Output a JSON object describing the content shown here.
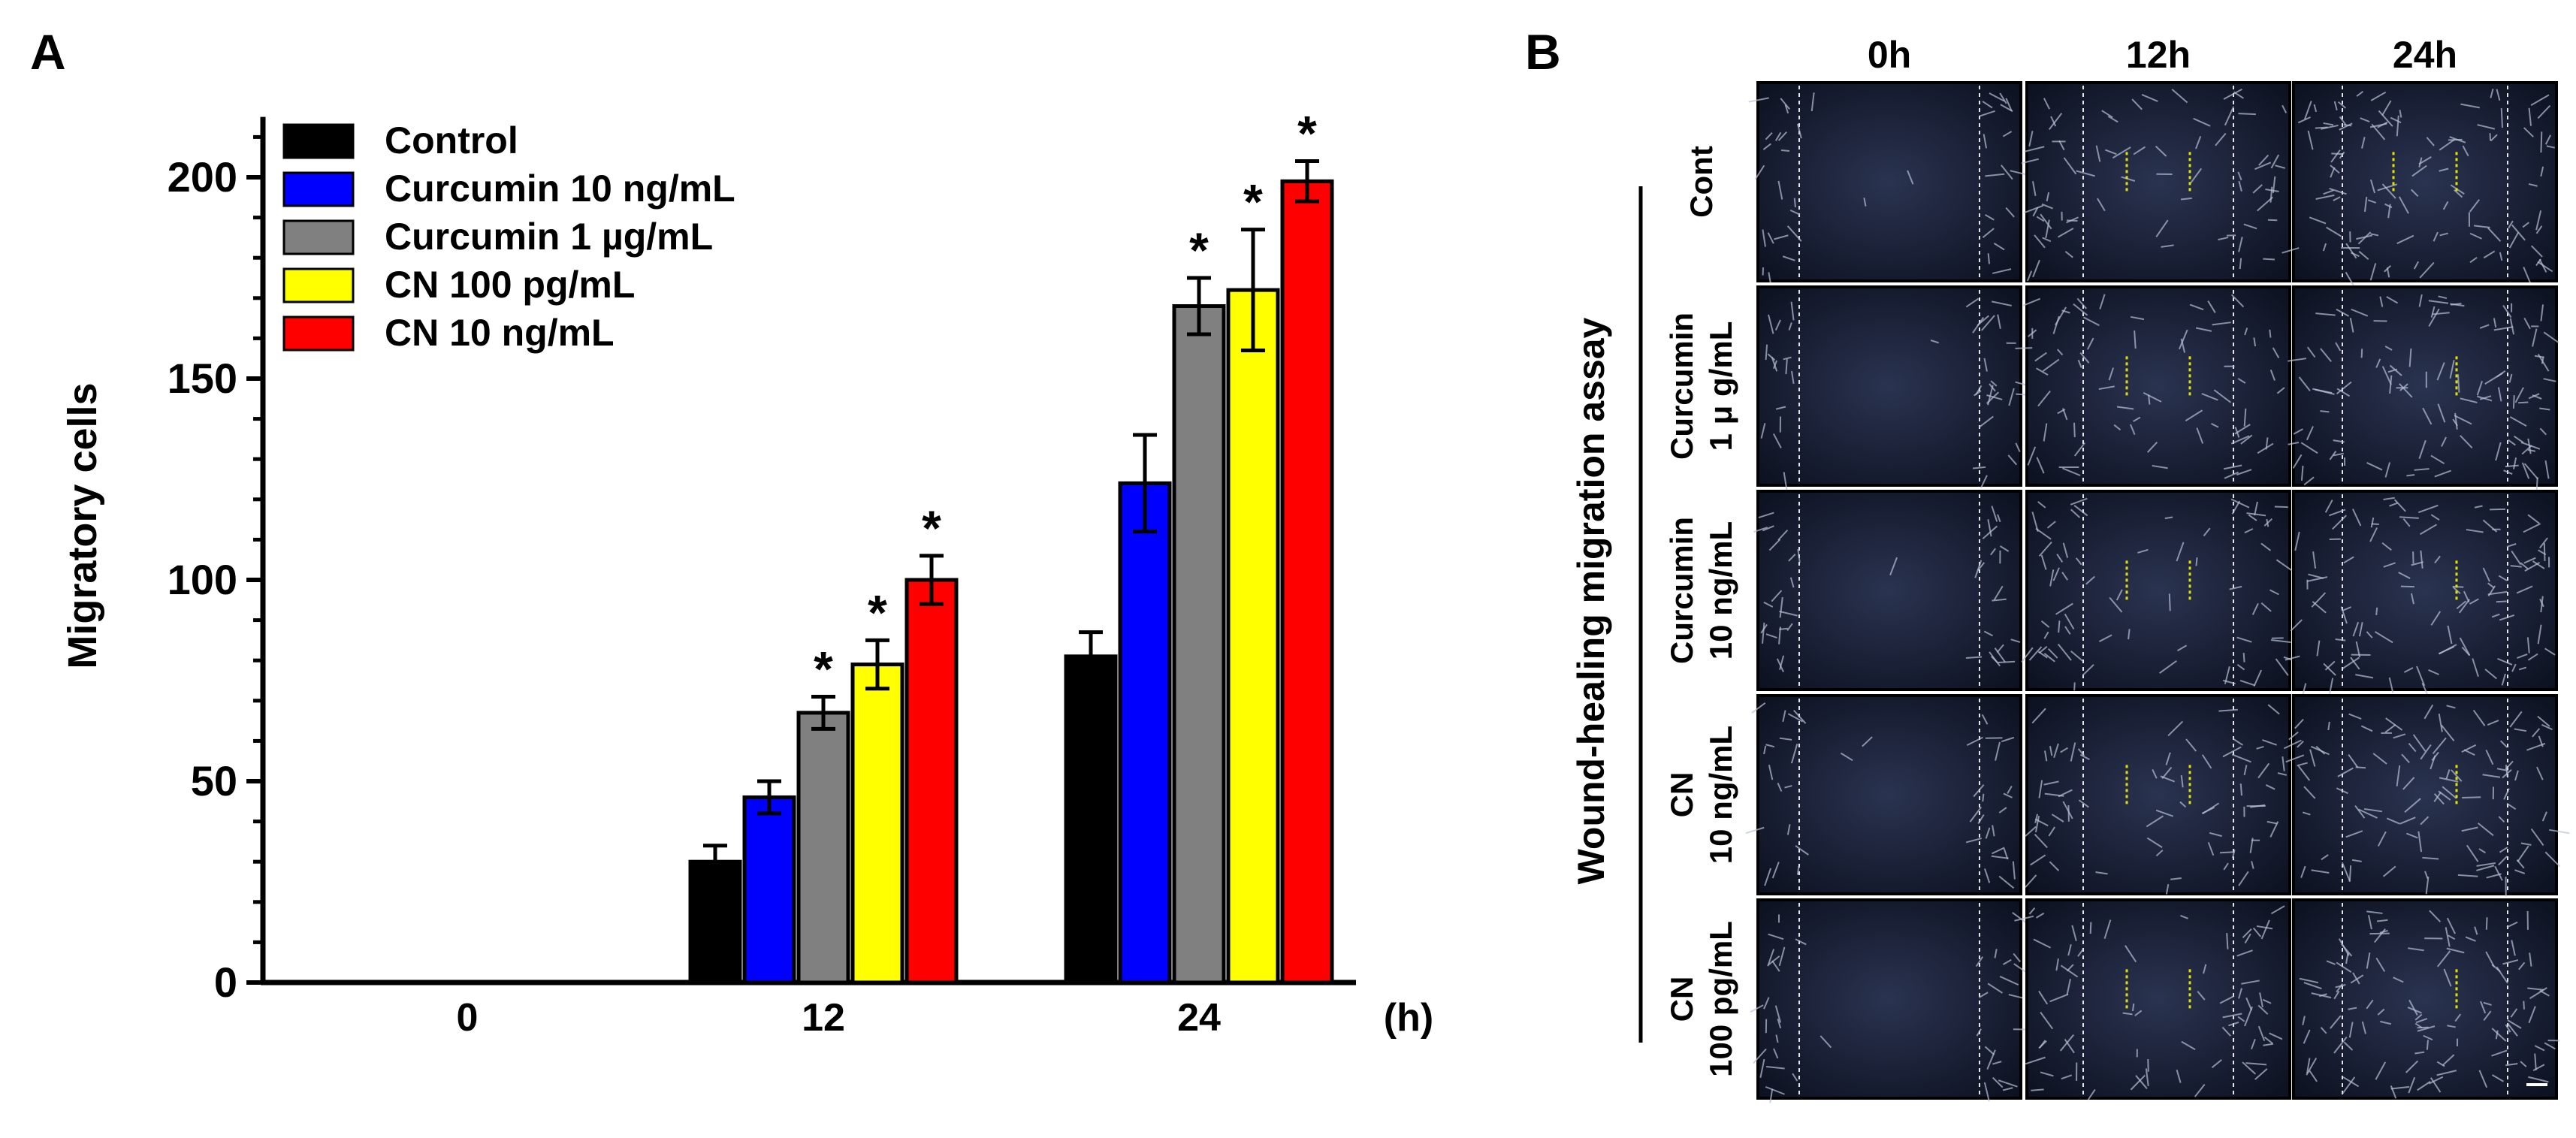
{
  "panels": {
    "a_label": "A",
    "b_label": "B"
  },
  "chart_data": {
    "type": "bar",
    "title": "",
    "ylabel": "Migratory cells",
    "xlabel": "(h)",
    "ylim": [
      0,
      215
    ],
    "yticks": [
      0,
      50,
      100,
      150,
      200
    ],
    "categories": [
      "0",
      "12",
      "24"
    ],
    "grid": false,
    "legend_position": "top-left",
    "significance_marker": "*",
    "series": [
      {
        "name": "Control",
        "color": "#000000",
        "values": [
          0,
          30,
          81
        ],
        "errors": [
          0,
          4,
          6
        ],
        "significant": [
          false,
          false,
          false
        ]
      },
      {
        "name": "Curcumin 10 ng/mL",
        "color": "#0000ff",
        "values": [
          0,
          46,
          124
        ],
        "errors": [
          0,
          4,
          12
        ],
        "significant": [
          false,
          false,
          false
        ]
      },
      {
        "name": "Curcumin 1 µg/mL",
        "color": "#808080",
        "values": [
          0,
          67,
          168
        ],
        "errors": [
          0,
          4,
          7
        ],
        "significant": [
          false,
          true,
          true
        ]
      },
      {
        "name": "CN 100 pg/mL",
        "color": "#ffff00",
        "values": [
          0,
          79,
          172
        ],
        "errors": [
          0,
          6,
          15
        ],
        "significant": [
          false,
          true,
          true
        ]
      },
      {
        "name": "CN 10 ng/mL",
        "color": "#ff0000",
        "values": [
          0,
          100,
          199
        ],
        "errors": [
          0,
          6,
          5
        ],
        "significant": [
          false,
          true,
          true
        ]
      }
    ]
  },
  "micrograph_grid": {
    "side_label": "Wound-healing migration assay",
    "columns": [
      "0h",
      "12h",
      "24h"
    ],
    "rows": [
      {
        "lines": [
          "Cont"
        ]
      },
      {
        "lines": [
          "Curcumin",
          "1 μ g/mL"
        ]
      },
      {
        "lines": [
          "Curcumin",
          "10 ng/mL"
        ]
      },
      {
        "lines": [
          "CN",
          "10 ng/mL"
        ]
      },
      {
        "lines": [
          "CN",
          "100 pg/mL"
        ]
      }
    ]
  }
}
